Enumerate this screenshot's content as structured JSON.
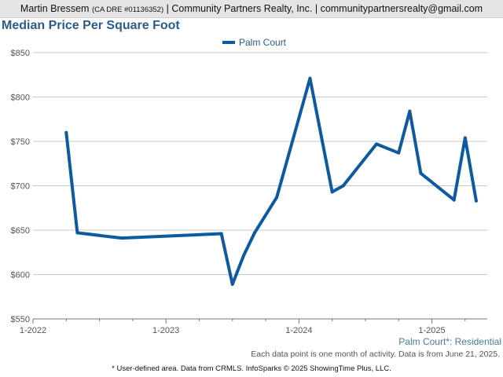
{
  "header": {
    "agent_name": "Martin Bressem",
    "license": "(CA DRE #01136352)",
    "separator": "|",
    "company": "Community Partners Realty, Inc.",
    "email": "communitypartnersrealty@gmail.com"
  },
  "footer": {
    "area_label": "Palm Court*: Residential",
    "note": "Each data point is one month of activity. Data is from June 21, 2025.",
    "credit": "* User-defined area. Data from CRMLS. InfoSparks © 2025 ShowingTime Plus, LLC."
  },
  "colors": {
    "series": "#0e5aa0",
    "title": "#2b5b8c",
    "grid": "#c8c8c8"
  },
  "chart_data": {
    "type": "line",
    "title": "Median Price Per Square Foot",
    "legend_position": "top-center",
    "grid": true,
    "x_ticks": [
      "1-2022",
      "1-2023",
      "1-2024",
      "1-2025"
    ],
    "y_ticks": [
      "$550",
      "$600",
      "$650",
      "$700",
      "$750",
      "$800",
      "$850"
    ],
    "xlim": [
      "2022-01",
      "2025-06"
    ],
    "ylim": [
      550,
      850
    ],
    "series": [
      {
        "name": "Palm Court",
        "points": [
          {
            "x": "2022-04",
            "y": 760
          },
          {
            "x": "2022-05",
            "y": 647
          },
          {
            "x": "2022-09",
            "y": 641
          },
          {
            "x": "2023-06",
            "y": 646
          },
          {
            "x": "2023-07",
            "y": 589
          },
          {
            "x": "2023-08",
            "y": 621
          },
          {
            "x": "2023-09",
            "y": 647
          },
          {
            "x": "2023-11",
            "y": 687
          },
          {
            "x": "2024-02",
            "y": 821
          },
          {
            "x": "2024-04",
            "y": 693
          },
          {
            "x": "2024-05",
            "y": 700
          },
          {
            "x": "2024-08",
            "y": 747
          },
          {
            "x": "2024-10",
            "y": 737
          },
          {
            "x": "2024-11",
            "y": 784
          },
          {
            "x": "2024-12",
            "y": 714
          },
          {
            "x": "2025-03",
            "y": 684
          },
          {
            "x": "2025-04",
            "y": 754
          },
          {
            "x": "2025-05",
            "y": 683
          }
        ]
      }
    ]
  }
}
